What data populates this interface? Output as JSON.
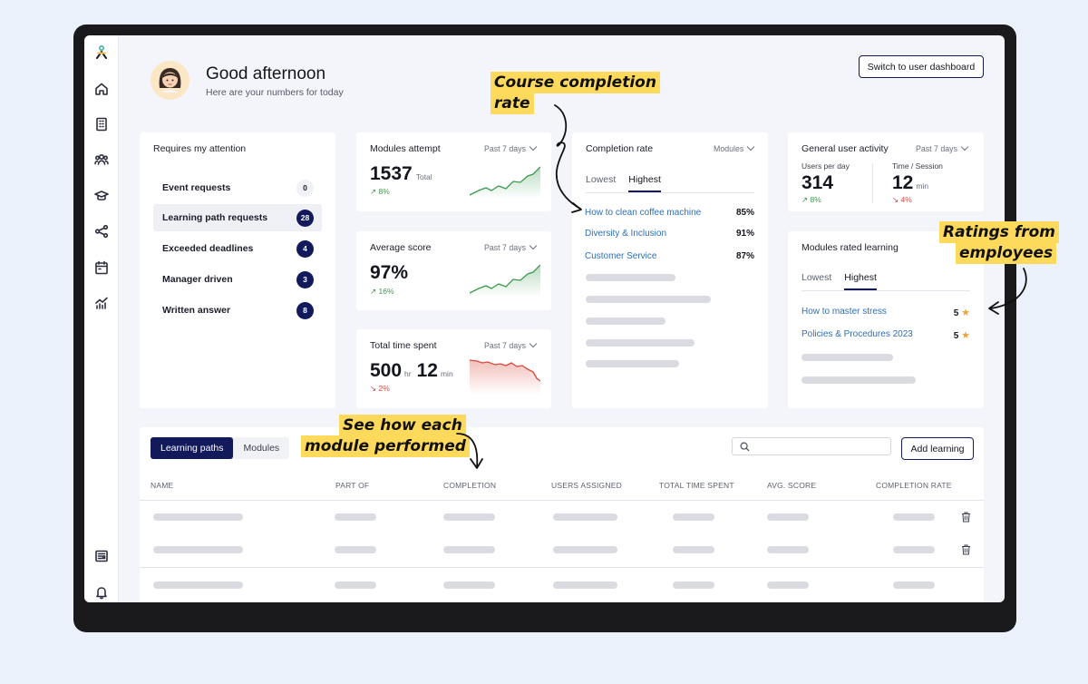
{
  "header": {
    "greeting": "Good afternoon",
    "subtitle": "Here are your numbers for today",
    "switch_button": "Switch to user dashboard"
  },
  "sidebar": {
    "icons": [
      "logo-icon",
      "home-icon",
      "building-icon",
      "users-icon",
      "graduation-cap-icon",
      "share-icon",
      "calendar-icon",
      "analytics-icon",
      "news-icon",
      "bell-icon"
    ]
  },
  "attention": {
    "title": "Requires my attention",
    "items": [
      {
        "label": "Event requests",
        "count": "0"
      },
      {
        "label": "Learning path requests",
        "count": "28"
      },
      {
        "label": "Exceeded deadlines",
        "count": "4"
      },
      {
        "label": "Manager driven",
        "count": "3"
      },
      {
        "label": "Written answer",
        "count": "8"
      }
    ]
  },
  "modules_attempt": {
    "title": "Modules attempt",
    "range": "Past 7 days",
    "value": "1537",
    "unit": "Total",
    "change": "8%"
  },
  "average_score": {
    "title": "Average score",
    "range": "Past 7 days",
    "value": "97%",
    "change": "16%"
  },
  "time_spent": {
    "title": "Total time spent",
    "range": "Past 7 days",
    "hours": "500",
    "hr_unit": "hr",
    "minutes": "12",
    "min_unit": "min",
    "change": "2%"
  },
  "completion_rate": {
    "title": "Completion rate",
    "filter": "Modules",
    "tabs": [
      "Lowest",
      "Highest"
    ],
    "items": [
      {
        "name": "How to clean coffee machine",
        "value": "85%"
      },
      {
        "name": "Diversity & Inclusion",
        "value": "91%"
      },
      {
        "name": "Customer Service",
        "value": "87%"
      }
    ]
  },
  "user_activity": {
    "title": "General user activity",
    "range": "Past 7 days",
    "users_label": "Users per day",
    "users_value": "314",
    "users_change": "8%",
    "session_label": "Time / Session",
    "session_value": "12",
    "session_unit": "min",
    "session_change": "4%"
  },
  "rated": {
    "title": "Modules rated learning",
    "tabs": [
      "Lowest",
      "Highest"
    ],
    "items": [
      {
        "name": "How to master stress",
        "rating": "5"
      },
      {
        "name": "Policies & Procedures 2023",
        "rating": "5"
      }
    ]
  },
  "table": {
    "tabs": [
      "Learning paths",
      "Modules"
    ],
    "search_placeholder": "",
    "add_button": "Add learning",
    "columns": [
      "NAME",
      "PART OF",
      "COMPLETION",
      "USERS ASSIGNED",
      "TOTAL TIME SPENT",
      "AVG. SCORE",
      "COMPLETION RATE"
    ]
  },
  "annotations": {
    "course_completion": [
      "Course completion",
      "rate"
    ],
    "ratings": [
      "Ratings from",
      "employees"
    ],
    "module_performed": [
      "See how each",
      "module performed"
    ]
  },
  "colors": {
    "accent": "#121a5c",
    "positive": "#3b9a4e",
    "negative": "#d9483b",
    "highlight": "#fdd95c",
    "link": "#2f6fb3"
  }
}
